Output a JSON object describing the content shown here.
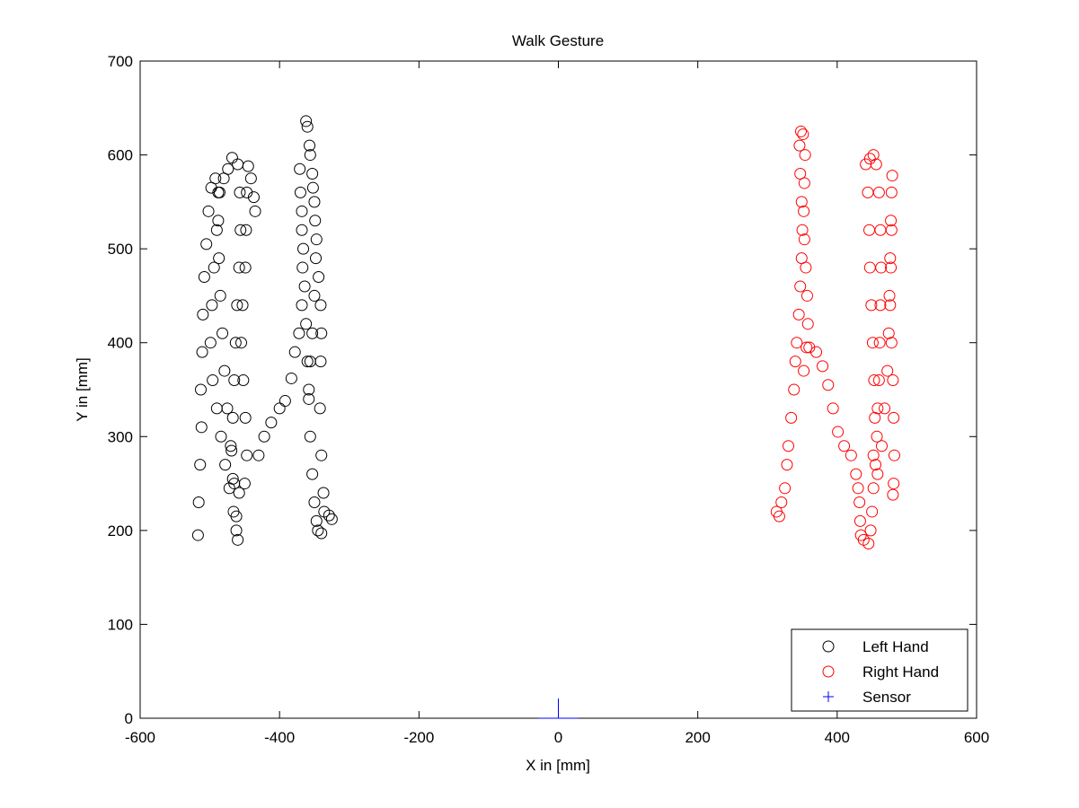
{
  "chart_data": {
    "type": "scatter",
    "title": "Walk Gesture",
    "xlabel": "X in [mm]",
    "ylabel": "Y in [mm]",
    "xlim": [
      -600,
      600
    ],
    "ylim": [
      0,
      700
    ],
    "xticks": [
      -600,
      -400,
      -200,
      0,
      200,
      400,
      600
    ],
    "yticks": [
      0,
      100,
      200,
      300,
      400,
      500,
      600,
      700
    ],
    "grid": false,
    "legend_position": "bottom-right",
    "series": [
      {
        "name": "Left Hand",
        "marker": "circle",
        "color": "#000000",
        "points": [
          [
            -517,
            195
          ],
          [
            -516,
            230
          ],
          [
            -514,
            270
          ],
          [
            -512,
            310
          ],
          [
            -513,
            350
          ],
          [
            -511,
            390
          ],
          [
            -510,
            430
          ],
          [
            -508,
            470
          ],
          [
            -505,
            505
          ],
          [
            -502,
            540
          ],
          [
            -498,
            565
          ],
          [
            -492,
            575
          ],
          [
            -488,
            560
          ],
          [
            -490,
            520
          ],
          [
            -494,
            480
          ],
          [
            -497,
            440
          ],
          [
            -499,
            400
          ],
          [
            -496,
            360
          ],
          [
            -490,
            330
          ],
          [
            -484,
            300
          ],
          [
            -478,
            270
          ],
          [
            -472,
            245
          ],
          [
            -466,
            220
          ],
          [
            -462,
            200
          ],
          [
            -460,
            190
          ],
          [
            -462,
            215
          ],
          [
            -465,
            250
          ],
          [
            -470,
            290
          ],
          [
            -475,
            330
          ],
          [
            -479,
            370
          ],
          [
            -482,
            410
          ],
          [
            -485,
            450
          ],
          [
            -487,
            490
          ],
          [
            -488,
            530
          ],
          [
            -486,
            560
          ],
          [
            -480,
            575
          ],
          [
            -474,
            585
          ],
          [
            -468,
            597
          ],
          [
            -460,
            590
          ],
          [
            -457,
            560
          ],
          [
            -456,
            520
          ],
          [
            -458,
            480
          ],
          [
            -461,
            440
          ],
          [
            -463,
            400
          ],
          [
            -465,
            360
          ],
          [
            -467,
            320
          ],
          [
            -469,
            285
          ],
          [
            -467,
            255
          ],
          [
            -458,
            240
          ],
          [
            -450,
            250
          ],
          [
            -447,
            280
          ],
          [
            -449,
            320
          ],
          [
            -452,
            360
          ],
          [
            -455,
            400
          ],
          [
            -453,
            440
          ],
          [
            -449,
            480
          ],
          [
            -448,
            520
          ],
          [
            -447,
            560
          ],
          [
            -445,
            588
          ],
          [
            -441,
            575
          ],
          [
            -437,
            555
          ],
          [
            -435,
            540
          ],
          [
            -430,
            280
          ],
          [
            -422,
            300
          ],
          [
            -412,
            315
          ],
          [
            -400,
            330
          ],
          [
            -392,
            338
          ],
          [
            -383,
            362
          ],
          [
            -378,
            390
          ],
          [
            -372,
            410
          ],
          [
            -368,
            440
          ],
          [
            -367,
            480
          ],
          [
            -368,
            520
          ],
          [
            -370,
            560
          ],
          [
            -371,
            585
          ],
          [
            -368,
            540
          ],
          [
            -366,
            500
          ],
          [
            -364,
            460
          ],
          [
            -362,
            420
          ],
          [
            -360,
            380
          ],
          [
            -358,
            340
          ],
          [
            -356,
            300
          ],
          [
            -353,
            260
          ],
          [
            -350,
            230
          ],
          [
            -347,
            210
          ],
          [
            -345,
            200
          ],
          [
            -340,
            197
          ],
          [
            -336,
            220
          ],
          [
            -329,
            216
          ],
          [
            -325,
            212
          ],
          [
            -337,
            240
          ],
          [
            -340,
            280
          ],
          [
            -342,
            330
          ],
          [
            -341,
            380
          ],
          [
            -340,
            410
          ],
          [
            -341,
            440
          ],
          [
            -344,
            470
          ],
          [
            -347,
            510
          ],
          [
            -350,
            550
          ],
          [
            -353,
            580
          ],
          [
            -357,
            610
          ],
          [
            -360,
            630
          ],
          [
            -362,
            636
          ],
          [
            -356,
            600
          ],
          [
            -352,
            565
          ],
          [
            -349,
            530
          ],
          [
            -348,
            490
          ],
          [
            -350,
            450
          ],
          [
            -353,
            410
          ],
          [
            -356,
            380
          ],
          [
            -358,
            350
          ]
        ]
      },
      {
        "name": "Right Hand",
        "marker": "circle",
        "color": "#ff0000",
        "points": [
          [
            313,
            220
          ],
          [
            317,
            215
          ],
          [
            320,
            230
          ],
          [
            325,
            245
          ],
          [
            328,
            270
          ],
          [
            330,
            290
          ],
          [
            334,
            320
          ],
          [
            338,
            350
          ],
          [
            340,
            380
          ],
          [
            342,
            400
          ],
          [
            345,
            430
          ],
          [
            347,
            460
          ],
          [
            349,
            490
          ],
          [
            350,
            520
          ],
          [
            349,
            550
          ],
          [
            347,
            580
          ],
          [
            346,
            610
          ],
          [
            348,
            625
          ],
          [
            351,
            622
          ],
          [
            354,
            600
          ],
          [
            353,
            570
          ],
          [
            352,
            540
          ],
          [
            353,
            510
          ],
          [
            355,
            480
          ],
          [
            357,
            450
          ],
          [
            358,
            420
          ],
          [
            356,
            395
          ],
          [
            352,
            370
          ],
          [
            360,
            395
          ],
          [
            370,
            390
          ],
          [
            379,
            375
          ],
          [
            387,
            355
          ],
          [
            394,
            330
          ],
          [
            401,
            305
          ],
          [
            410,
            290
          ],
          [
            420,
            280
          ],
          [
            427,
            260
          ],
          [
            430,
            245
          ],
          [
            432,
            230
          ],
          [
            433,
            210
          ],
          [
            434,
            195
          ],
          [
            438,
            190
          ],
          [
            445,
            186
          ],
          [
            448,
            200
          ],
          [
            450,
            220
          ],
          [
            452,
            245
          ],
          [
            455,
            270
          ],
          [
            457,
            300
          ],
          [
            458,
            330
          ],
          [
            460,
            360
          ],
          [
            461,
            400
          ],
          [
            462,
            440
          ],
          [
            463,
            480
          ],
          [
            462,
            520
          ],
          [
            460,
            560
          ],
          [
            456,
            590
          ],
          [
            452,
            600
          ],
          [
            447,
            596
          ],
          [
            441,
            590
          ],
          [
            444,
            560
          ],
          [
            446,
            520
          ],
          [
            447,
            480
          ],
          [
            449,
            440
          ],
          [
            451,
            400
          ],
          [
            453,
            360
          ],
          [
            454,
            320
          ],
          [
            452,
            280
          ],
          [
            458,
            260
          ],
          [
            464,
            290
          ],
          [
            468,
            330
          ],
          [
            472,
            370
          ],
          [
            474,
            410
          ],
          [
            475,
            450
          ],
          [
            476,
            490
          ],
          [
            477,
            530
          ],
          [
            478,
            560
          ],
          [
            479,
            578
          ],
          [
            478,
            520
          ],
          [
            477,
            480
          ],
          [
            476,
            440
          ],
          [
            478,
            400
          ],
          [
            480,
            360
          ],
          [
            481,
            320
          ],
          [
            482,
            280
          ],
          [
            481,
            250
          ],
          [
            480,
            238
          ]
        ]
      },
      {
        "name": "Sensor",
        "marker": "plus",
        "color": "#0000ff",
        "points": [
          [
            0,
            0
          ]
        ]
      }
    ]
  }
}
